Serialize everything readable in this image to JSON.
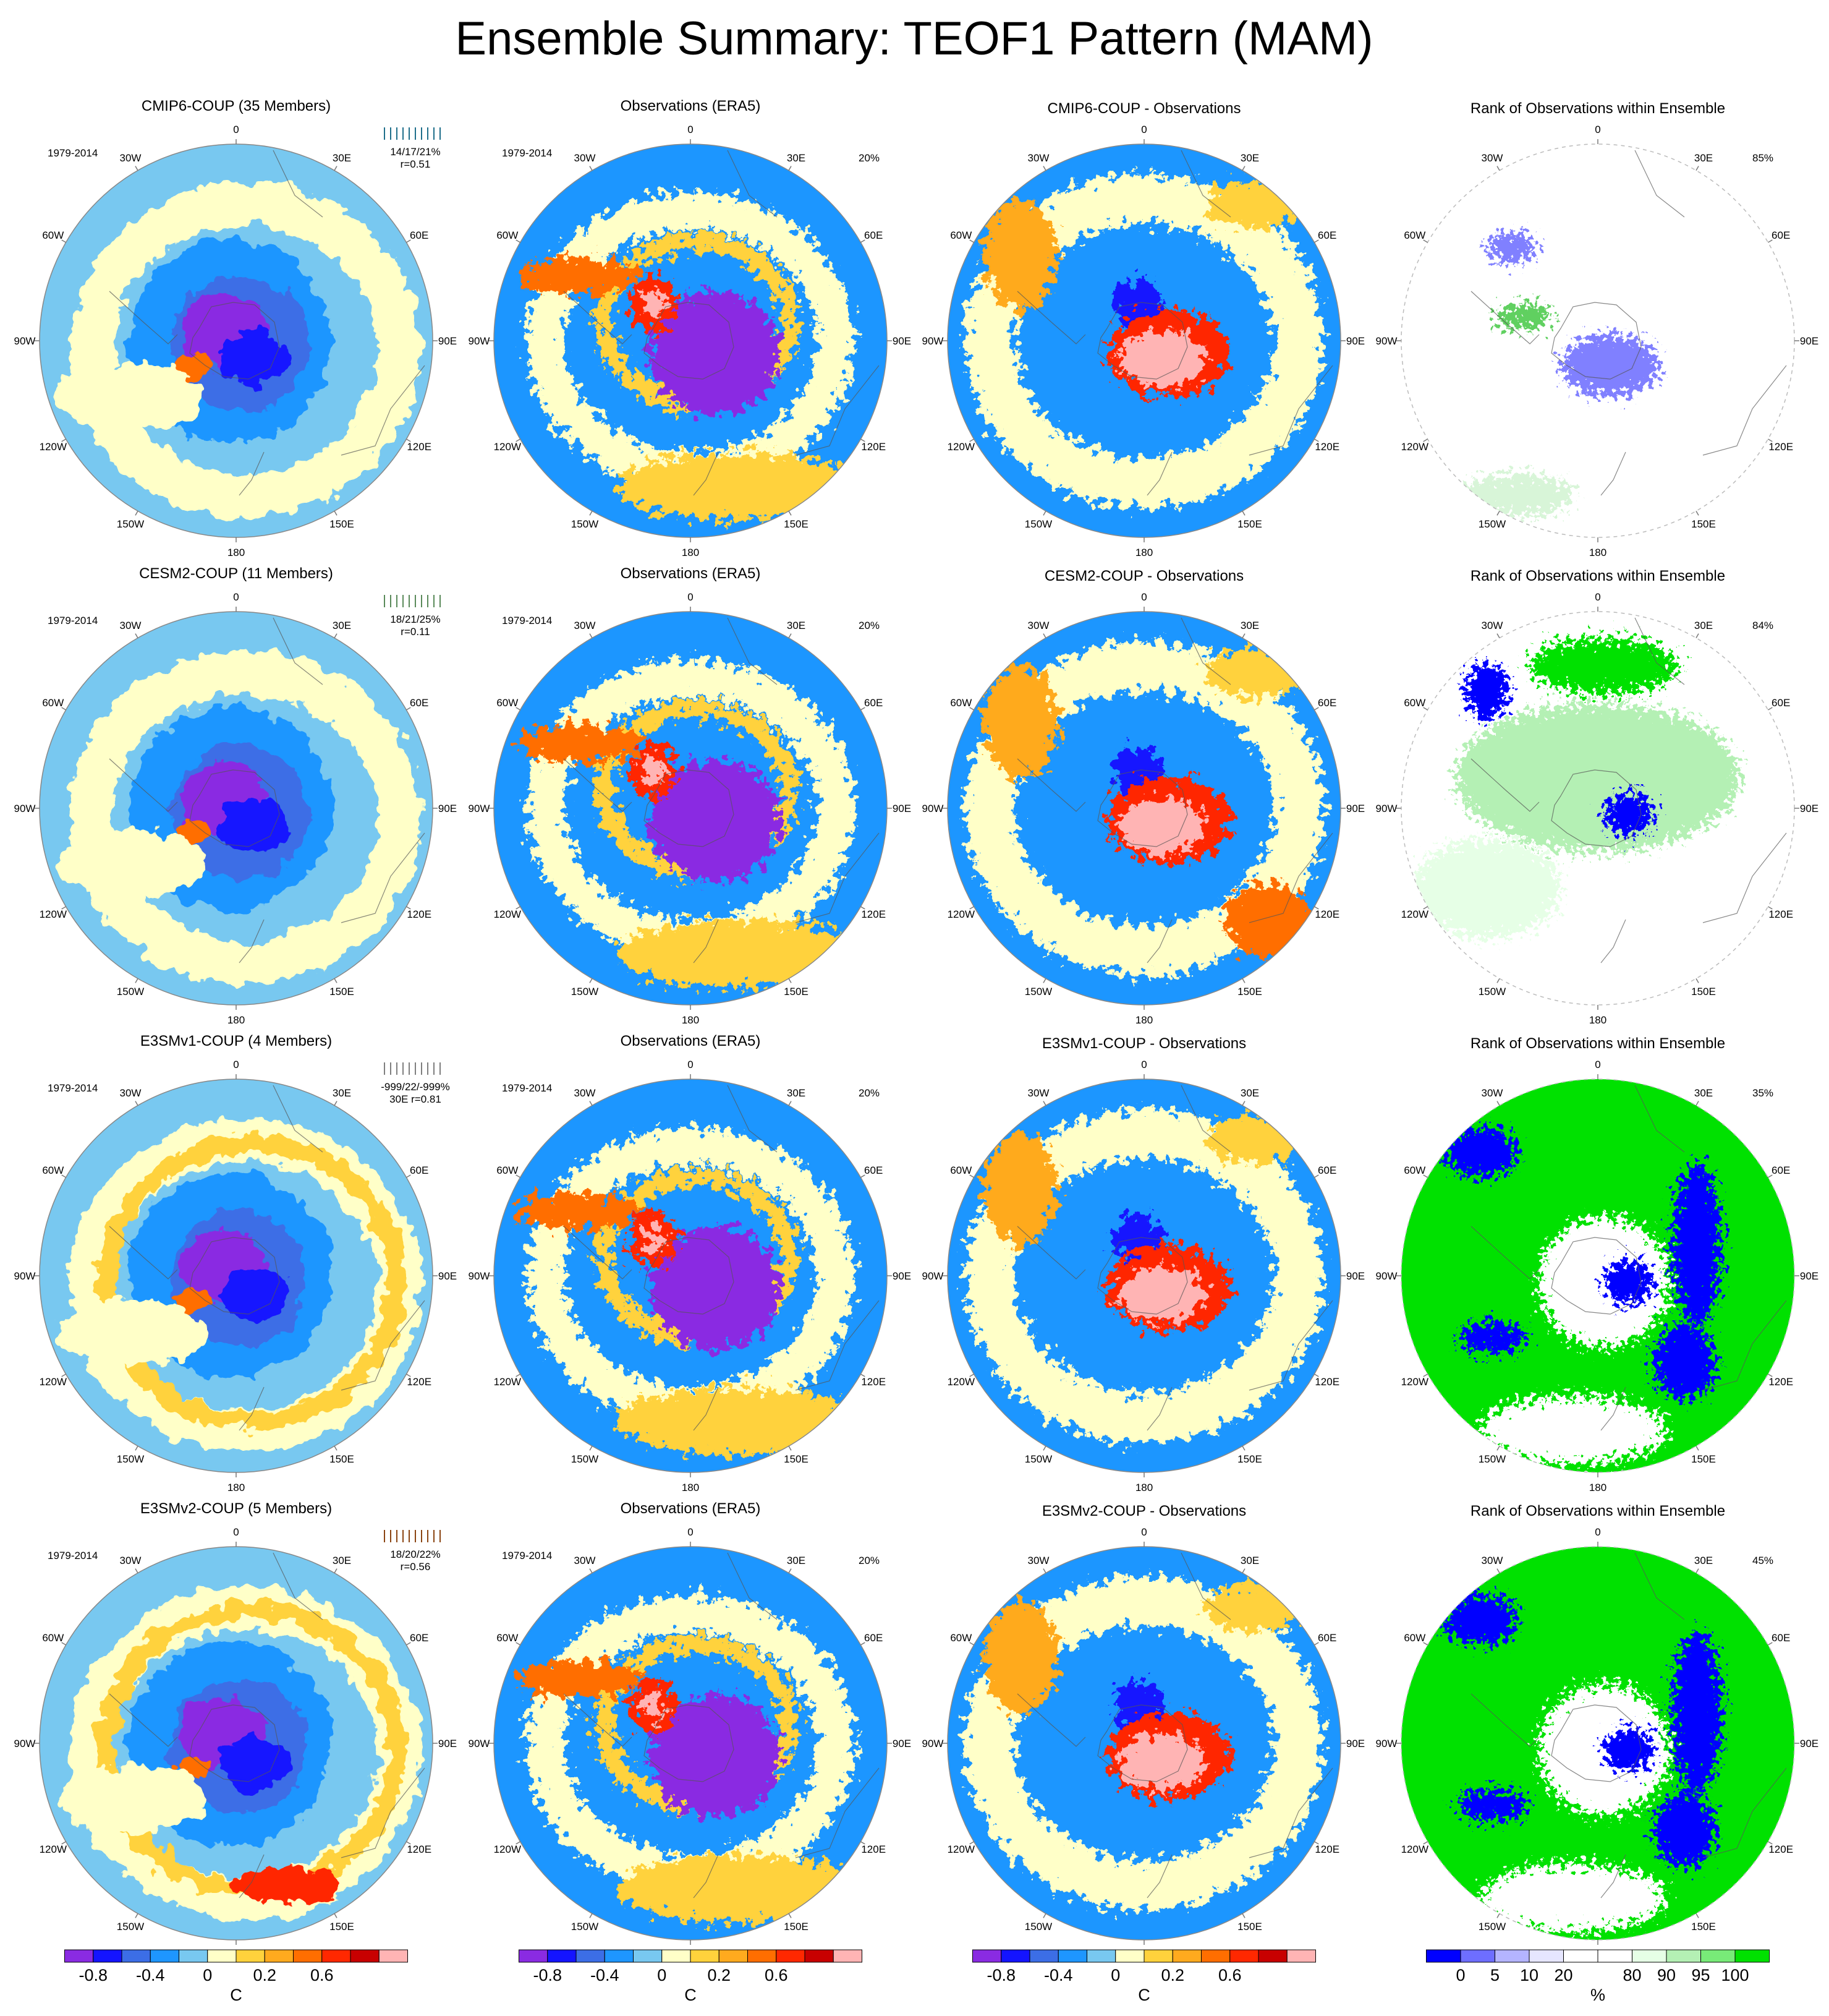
{
  "title": "Ensemble Summary: TEOF1 Pattern (MAM)",
  "period": "1979-2014",
  "rows": [
    {
      "model": "CMIP6-COUP (35 Members)",
      "model_color": "#1f6f8b",
      "stats": "14/17/21%",
      "corr": "r=0.51",
      "diff_title": "CMIP6-COUP - Observations",
      "rank_pct": "85%",
      "obs_pct": "20%"
    },
    {
      "model": "CESM2-COUP (11 Members)",
      "model_color": "#5a8a5a",
      "stats": "18/21/25%",
      "corr": "r=0.11",
      "diff_title": "CESM2-COUP - Observations",
      "rank_pct": "84%",
      "obs_pct": "20%"
    },
    {
      "model": "E3SMv1-COUP (4 Members)",
      "model_color": "#7f7f7f",
      "stats": "-999/22/-999%",
      "corr": "30E r=0.81",
      "diff_title": "E3SMv1-COUP - Observations",
      "rank_pct": "35%",
      "obs_pct": "20%"
    },
    {
      "model": "E3SMv2-COUP (5 Members)",
      "model_color": "#8b4513",
      "stats": "18/20/22%",
      "corr": "r=0.56",
      "diff_title": "E3SMv2-COUP - Observations",
      "rank_pct": "45%",
      "obs_pct": "20%"
    }
  ],
  "obs_title": "Observations (ERA5)",
  "rank_title": "Rank of Observations within Ensemble",
  "longitudes": [
    "0",
    "30E",
    "60E",
    "90E",
    "120E",
    "150E",
    "180",
    "150W",
    "120W",
    "90W",
    "60W",
    "30W"
  ],
  "colorbars": {
    "temperature": {
      "colors": [
        "#8a2be2",
        "#1414ff",
        "#3c6ee6",
        "#1e96ff",
        "#78c8f0",
        "#ffffc8",
        "#ffd23c",
        "#ffaa1e",
        "#ff6e00",
        "#ff2800",
        "#c80000",
        "#ffb4b4"
      ],
      "ticks": [
        "-0.8",
        "-0.4",
        "0",
        "0.2",
        "0.6"
      ],
      "tick_index": [
        1,
        3,
        5,
        7,
        9
      ],
      "unit": "C"
    },
    "rank": {
      "colors": [
        "#0000ff",
        "#6e6eff",
        "#b4b4ff",
        "#e6e6ff",
        "#ffffff",
        "#ffffff",
        "#e6ffe6",
        "#b4f0b4",
        "#78eb78",
        "#00e100"
      ],
      "ticks": [
        "0",
        "5",
        "10",
        "20",
        "80",
        "90",
        "95",
        "100"
      ],
      "tick_index": [
        1,
        2,
        3,
        4,
        6,
        7,
        8,
        9
      ],
      "unit": "%"
    }
  },
  "palette": {
    "temp_levels": [
      "#8a2be2",
      "#1414ff",
      "#3c6ee6",
      "#1e96ff",
      "#78c8f0",
      "#ffffc8",
      "#ffd23c",
      "#ffaa1e",
      "#ff6e00",
      "#ff2800",
      "#c80000",
      "#ffb4b4"
    ],
    "rank_levels": {
      "low": "#0000ff",
      "low2": "#8080ff",
      "mid": "#ffffff",
      "high2": "#b4f0b4",
      "high": "#00e100"
    }
  }
}
